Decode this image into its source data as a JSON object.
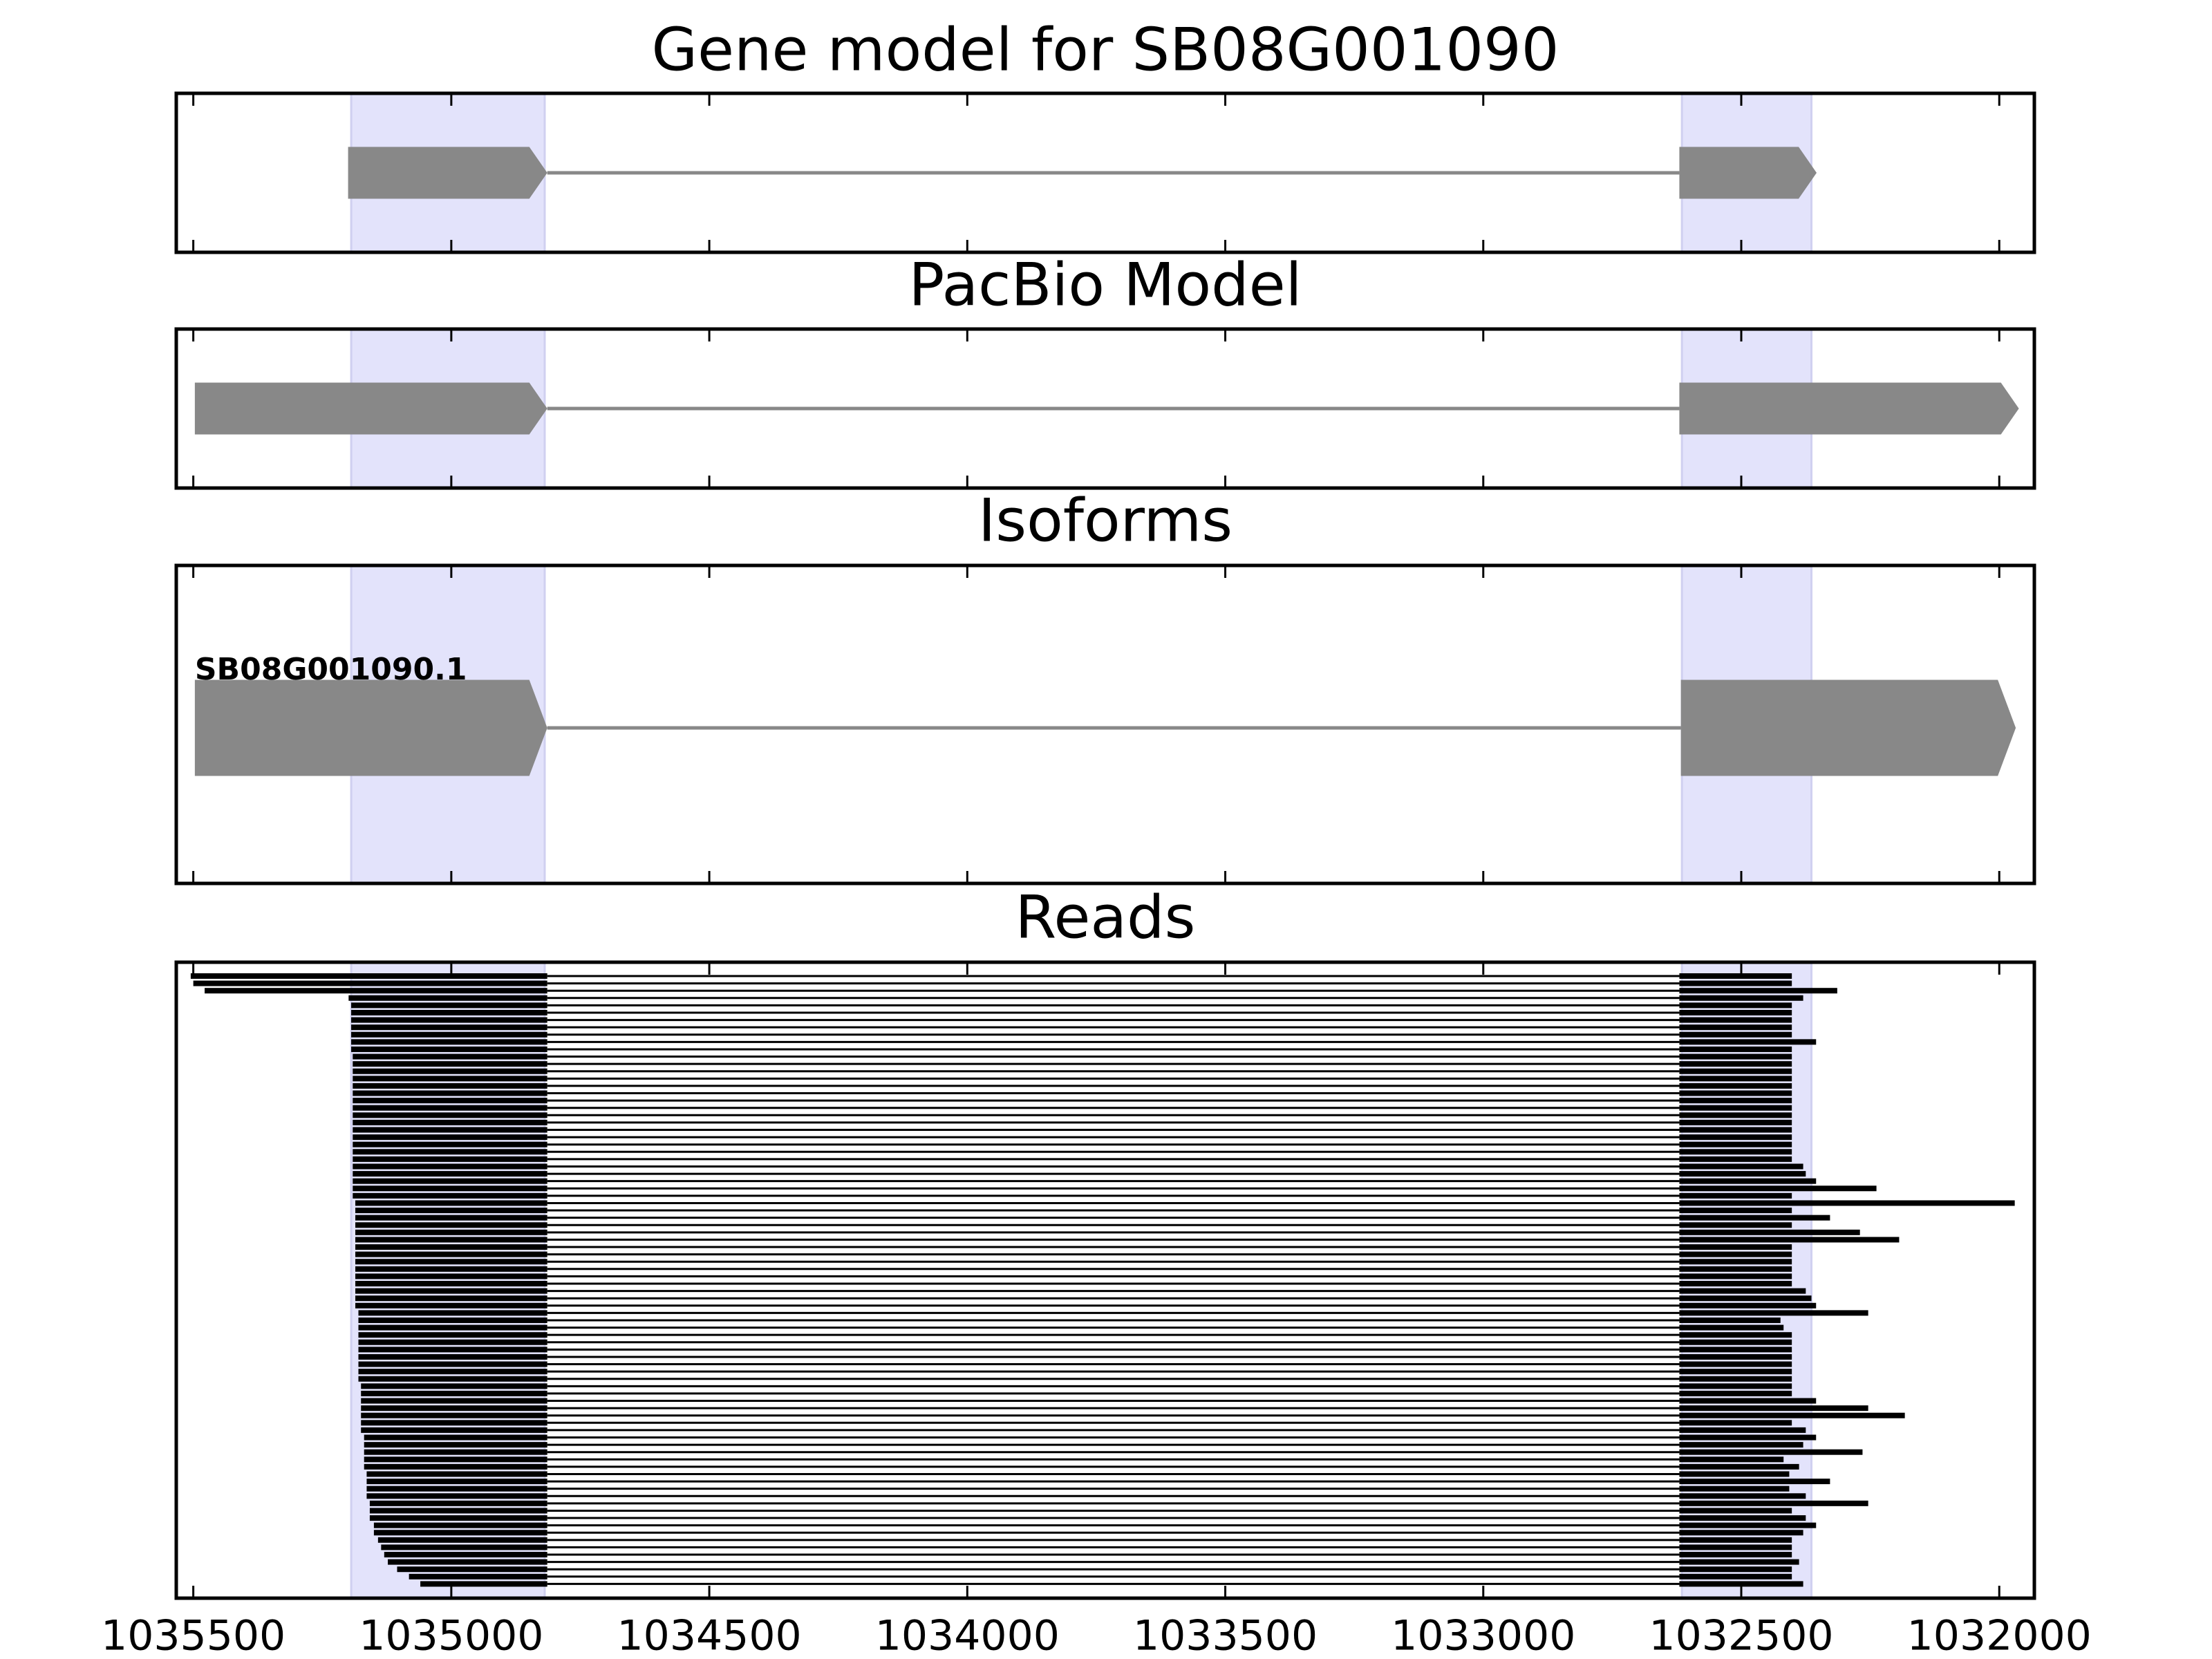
{
  "chart_data": [
    {
      "type": "gene-track",
      "title": "Gene model for SB08G001090",
      "xlim": [
        1035533,
        1031932
      ],
      "xticks": [
        1035500,
        1035000,
        1034500,
        1034000,
        1033500,
        1033000,
        1032500,
        1032000
      ],
      "highlights": [
        [
          1035194,
          1034819
        ],
        [
          1032615,
          1032364
        ]
      ],
      "highlight_color": "#e3e3fb",
      "color": "#888888",
      "exons": [
        [
          1035200,
          1034814
        ],
        [
          1032620,
          1032354
        ]
      ]
    },
    {
      "type": "gene-track",
      "title": "PacBio Model",
      "xlim": [
        1035533,
        1031932
      ],
      "xticks": [
        1035500,
        1035000,
        1034500,
        1034000,
        1033500,
        1033000,
        1032500,
        1032000
      ],
      "highlights": [
        [
          1035194,
          1034819
        ],
        [
          1032615,
          1032364
        ]
      ],
      "highlight_color": "#e3e3fb",
      "color": "#888888",
      "exons": [
        [
          1035497,
          1034814
        ],
        [
          1032620,
          1031962
        ]
      ]
    },
    {
      "type": "isoform-track",
      "title": "Isoforms",
      "xlim": [
        1035533,
        1031932
      ],
      "xticks": [
        1035500,
        1035000,
        1034500,
        1034000,
        1033500,
        1033000,
        1032500,
        1032000
      ],
      "highlights": [
        [
          1035194,
          1034819
        ],
        [
          1032615,
          1032364
        ]
      ],
      "highlight_color": "#e3e3fb",
      "color": "#888888",
      "isoforms": [
        {
          "name": "SB08G001090.1",
          "exons": [
            [
              1035497,
              1034814
            ],
            [
              1032617,
              1031968
            ]
          ]
        }
      ]
    },
    {
      "type": "reads",
      "title": "Reads",
      "xlim": [
        1035533,
        1031932
      ],
      "xticks": [
        1035500,
        1035000,
        1034500,
        1034000,
        1033500,
        1033000,
        1032500,
        1032000
      ],
      "highlights": [
        [
          1035194,
          1034819
        ],
        [
          1032615,
          1032364
        ]
      ],
      "highlight_color": "#e3e3fb",
      "color": "#000000",
      "intron": [
        1034814,
        1032620
      ],
      "starts": [
        1035505,
        1035500,
        1035478,
        1035199,
        1035194,
        1035194,
        1035194,
        1035194,
        1035194,
        1035194,
        1035194,
        1035191,
        1035191,
        1035191,
        1035191,
        1035191,
        1035191,
        1035191,
        1035191,
        1035191,
        1035191,
        1035191,
        1035191,
        1035191,
        1035191,
        1035191,
        1035191,
        1035191,
        1035191,
        1035191,
        1035191,
        1035186,
        1035186,
        1035186,
        1035186,
        1035186,
        1035186,
        1035186,
        1035186,
        1035186,
        1035186,
        1035186,
        1035186,
        1035186,
        1035186,
        1035186,
        1035180,
        1035180,
        1035180,
        1035180,
        1035180,
        1035180,
        1035180,
        1035180,
        1035180,
        1035180,
        1035175,
        1035175,
        1035175,
        1035175,
        1035175,
        1035175,
        1035175,
        1035169,
        1035169,
        1035169,
        1035169,
        1035169,
        1035164,
        1035164,
        1035164,
        1035164,
        1035158,
        1035158,
        1035158,
        1035150,
        1035150,
        1035142,
        1035136,
        1035130,
        1035123,
        1035105,
        1035082,
        1035060
      ],
      "ends": [
        1032402,
        1032402,
        1032314,
        1032380,
        1032402,
        1032402,
        1032402,
        1032402,
        1032402,
        1032355,
        1032402,
        1032402,
        1032402,
        1032402,
        1032402,
        1032402,
        1032402,
        1032402,
        1032402,
        1032402,
        1032402,
        1032402,
        1032402,
        1032402,
        1032402,
        1032402,
        1032380,
        1032375,
        1032355,
        1032238,
        1032402,
        1031970,
        1032402,
        1032328,
        1032402,
        1032270,
        1032194,
        1032402,
        1032402,
        1032402,
        1032402,
        1032402,
        1032402,
        1032375,
        1032364,
        1032355,
        1032254,
        1032424,
        1032418,
        1032402,
        1032402,
        1032402,
        1032402,
        1032402,
        1032402,
        1032402,
        1032402,
        1032402,
        1032355,
        1032254,
        1032183,
        1032402,
        1032375,
        1032355,
        1032380,
        1032265,
        1032418,
        1032388,
        1032407,
        1032328,
        1032407,
        1032375,
        1032254,
        1032402,
        1032375,
        1032355,
        1032380,
        1032402,
        1032402,
        1032402,
        1032388,
        1032402,
        1032402,
        1032380
      ]
    }
  ]
}
